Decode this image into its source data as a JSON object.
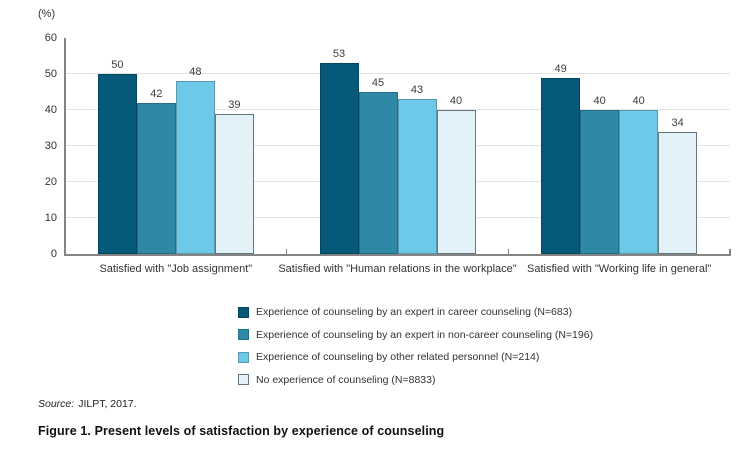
{
  "figure": {
    "unit_label": "(%)",
    "source_prefix": "Source:",
    "source_text": "JILPT, 2017.",
    "caption": "Figure 1. Present levels of satisfaction by experience of counseling"
  },
  "chart_data": {
    "type": "bar",
    "title": "Figure 1. Present levels of satisfaction by experience of counseling",
    "unit_label": "(%)",
    "categories": [
      "Satisfied with \"Job assignment\"",
      "Satisfied with \"Human relations in the workplace\"",
      "Satisfied with \"Working life in general\""
    ],
    "series": [
      {
        "name": "Experience of counseling by an expert in career counseling (N=683)",
        "values": [
          50,
          53,
          49
        ],
        "color": "#07597a",
        "border": "#04465e"
      },
      {
        "name": "Experience of counseling by an expert in non-career counseling (N=196)",
        "values": [
          42,
          45,
          40
        ],
        "color": "#2f89a6",
        "border": "#226e88"
      },
      {
        "name": "Experience of counseling by other related personnel (N=214)",
        "values": [
          48,
          43,
          40
        ],
        "color": "#6ec9e8",
        "border": "#5c98ae"
      },
      {
        "name": "No experience of counseling (N=8833)",
        "values": [
          39,
          40,
          34
        ],
        "color": "#e2f2f8",
        "border": "#66767e"
      }
    ],
    "ylim": [
      0,
      60
    ],
    "yticks": [
      0,
      10,
      20,
      30,
      40,
      50,
      60
    ],
    "grid": true,
    "legend_position": "bottom",
    "axis_color": "#848484",
    "gridline_color": "#e3e3e3",
    "label_color": "#333333"
  }
}
